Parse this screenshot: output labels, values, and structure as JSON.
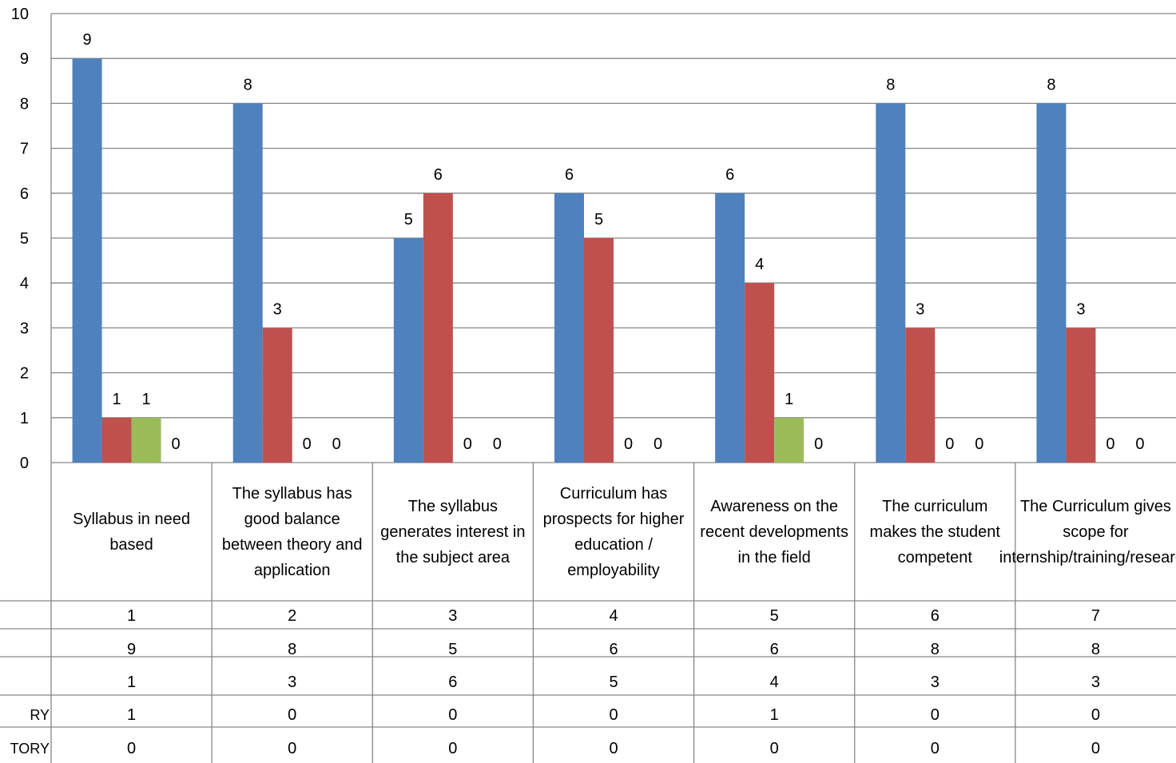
{
  "chart_data": {
    "type": "bar",
    "ylim": [
      0,
      10
    ],
    "yticks": [
      0,
      1,
      2,
      3,
      4,
      5,
      6,
      7,
      8,
      9,
      10
    ],
    "grid": true,
    "colors": [
      "#4F81BD",
      "#C0504D",
      "#9BBB59",
      "#8064A2"
    ],
    "category_numbers": [
      "1",
      "2",
      "3",
      "4",
      "5",
      "6",
      "7"
    ],
    "categories": [
      "Syllabus in need based",
      "The syllabus has good balance between theory and application",
      "The syllabus generates interest in the subject area",
      "Curriculum has prospects for higher education / employability",
      "Awareness on the recent developments in the field",
      "The curriculum makes the student competent",
      "The Curriculum gives scope for internship/training/research"
    ],
    "series": [
      {
        "name": "",
        "values": [
          9,
          8,
          5,
          6,
          6,
          8,
          8
        ]
      },
      {
        "name": "",
        "values": [
          1,
          3,
          6,
          5,
          4,
          3,
          3
        ]
      },
      {
        "name": "RY",
        "values": [
          1,
          0,
          0,
          0,
          1,
          0,
          0
        ]
      },
      {
        "name": "TORY",
        "values": [
          0,
          0,
          0,
          0,
          0,
          0,
          0
        ]
      }
    ]
  }
}
